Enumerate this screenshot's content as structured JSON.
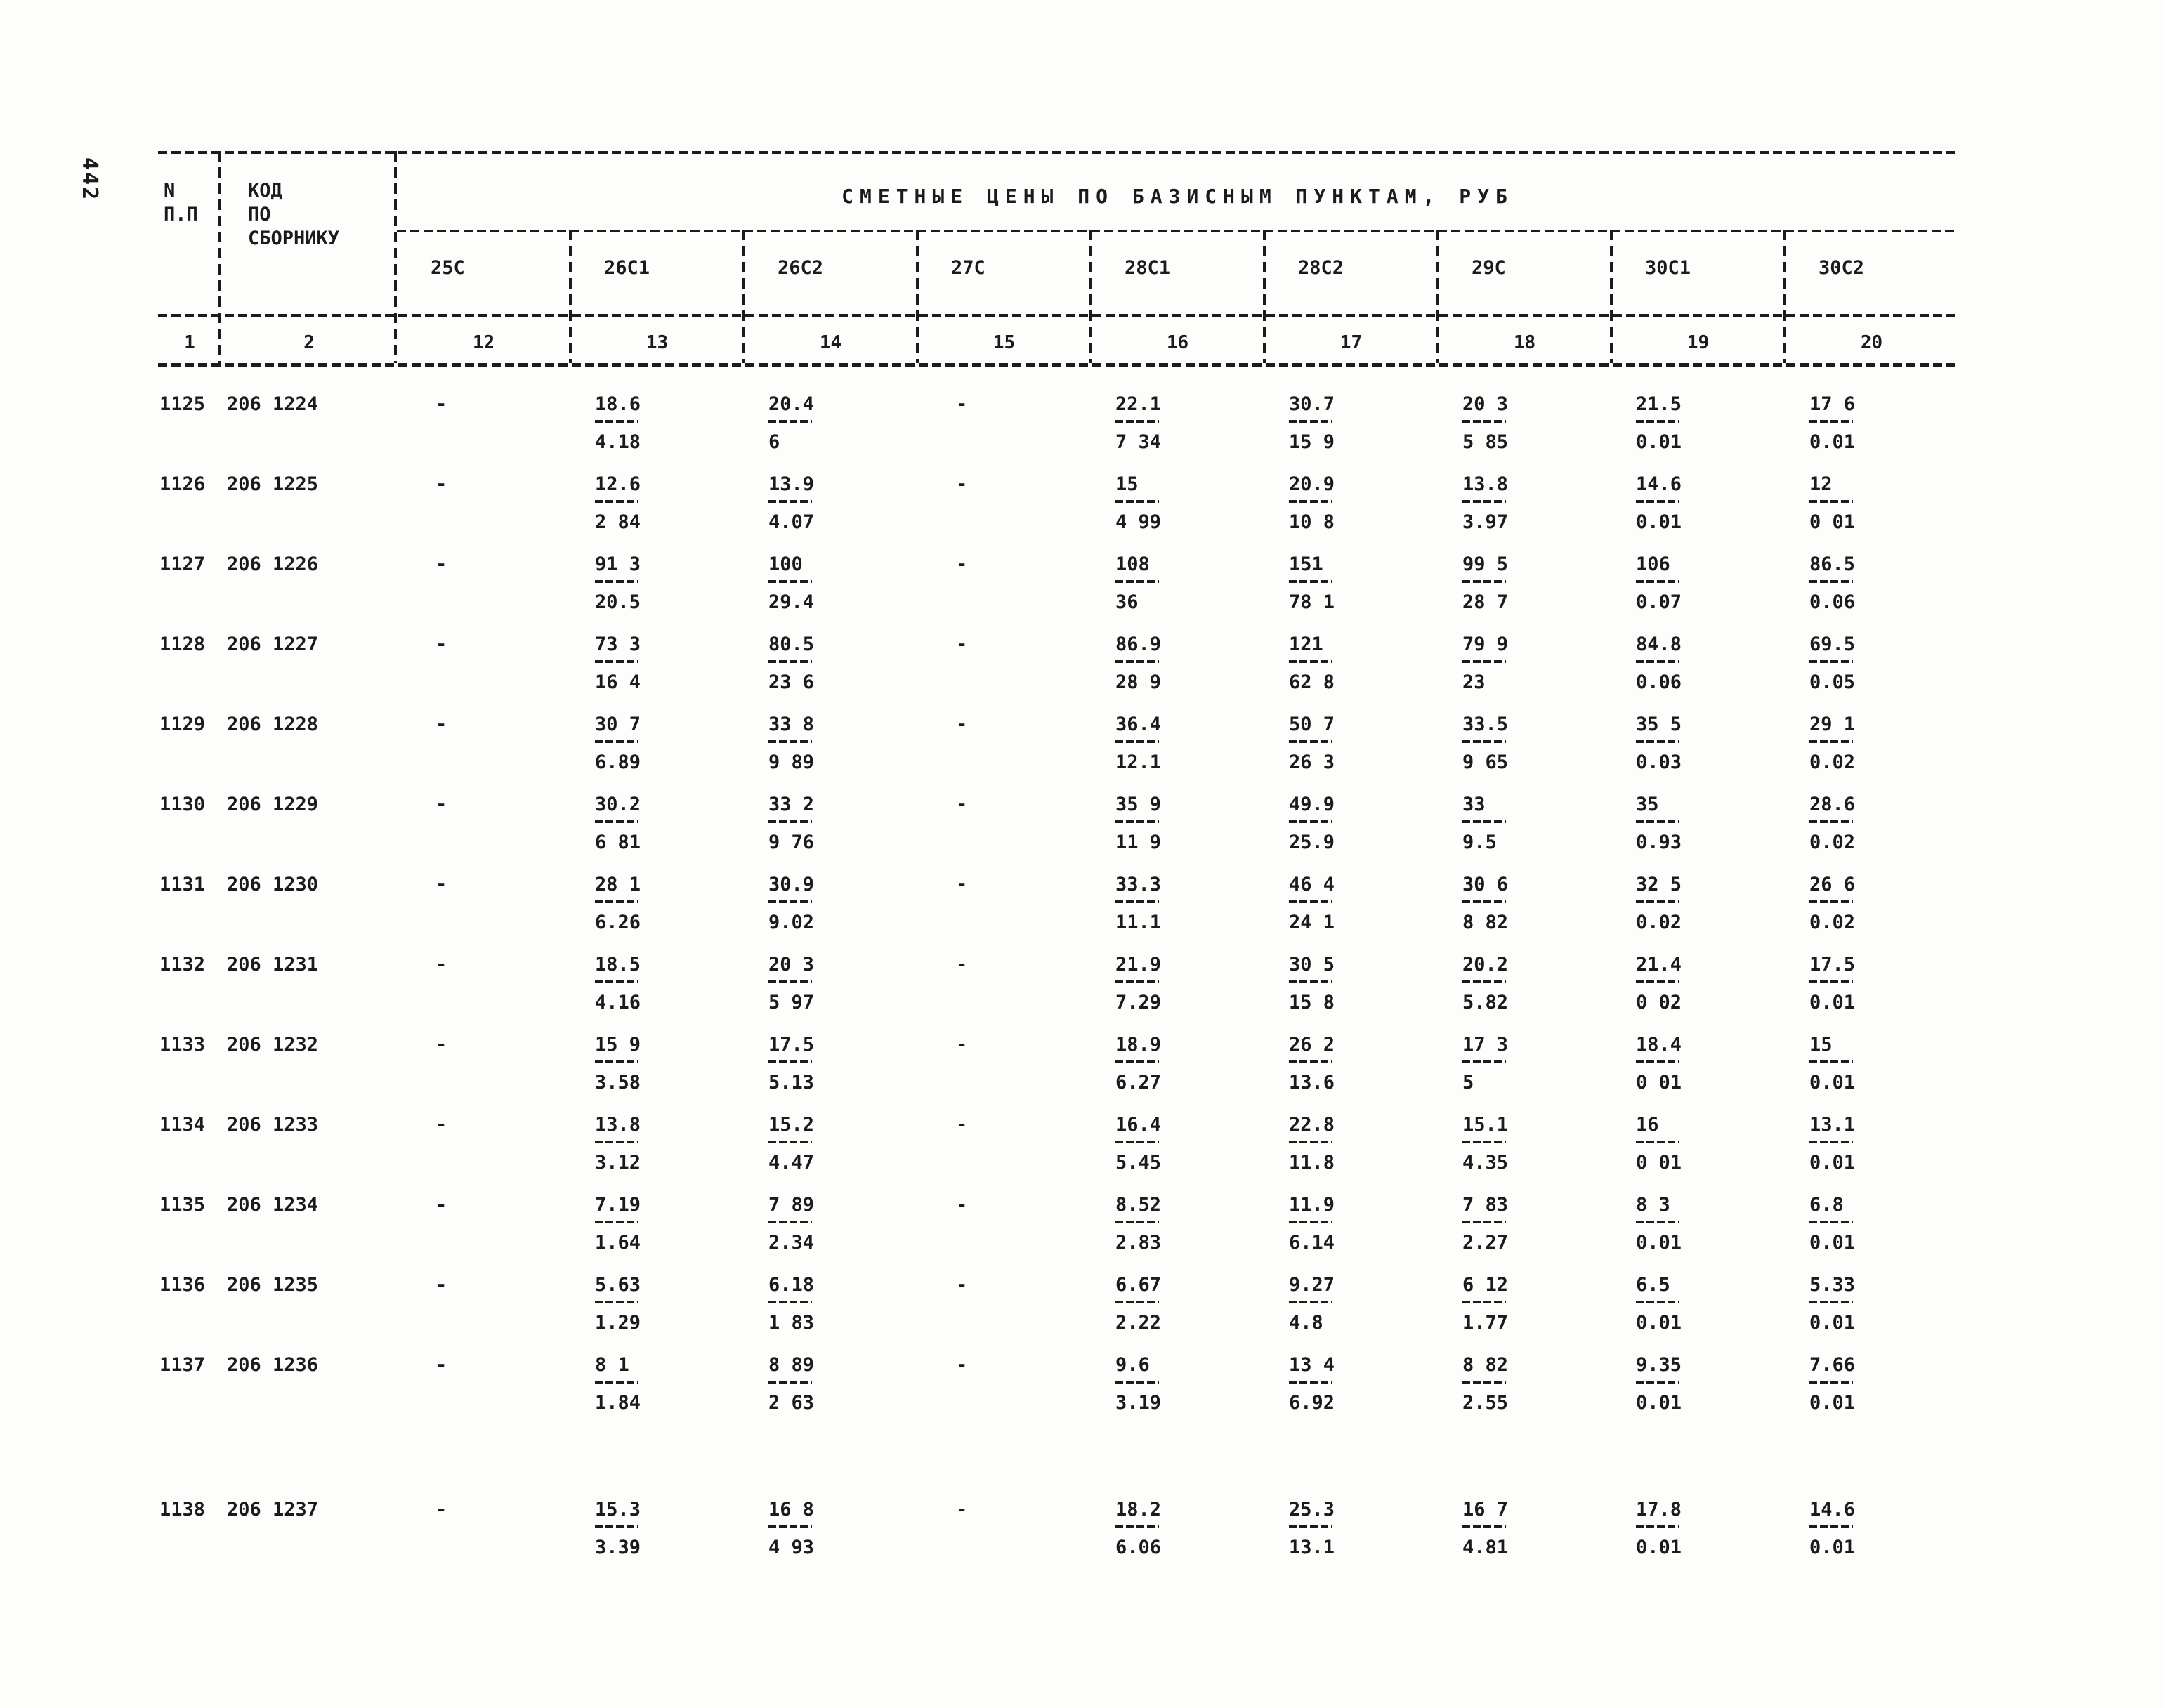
{
  "page": {
    "number": "442"
  },
  "table": {
    "header": {
      "row_col": [
        "N",
        "П.П"
      ],
      "code_col": [
        "КОД",
        "ПО",
        "СБОРНИКУ"
      ],
      "group_title": "СМЕТНЫЕ ЦЕНЫ ПО БАЗИСНЫМ ПУНКТАМ, РУБ",
      "price_columns": [
        "25С",
        "26С1",
        "26С2",
        "27С",
        "28С1",
        "28С2",
        "29С",
        "30С1",
        "30С2"
      ],
      "column_numbers": [
        "1",
        "2",
        "12",
        "13",
        "14",
        "15",
        "16",
        "17",
        "18",
        "19",
        "20"
      ]
    },
    "rows": [
      {
        "n": "1125",
        "code": "206 1224",
        "cells": [
          "-",
          [
            "18.6",
            "4.18"
          ],
          [
            "20.4",
            "6"
          ],
          "-",
          [
            "22.1",
            "7 34"
          ],
          [
            "30.7",
            "15 9"
          ],
          [
            "20 3",
            "5 85"
          ],
          [
            "21.5",
            "0.01"
          ],
          [
            "17 6",
            "0.01"
          ]
        ]
      },
      {
        "n": "1126",
        "code": "206 1225",
        "cells": [
          "-",
          [
            "12.6",
            "2 84"
          ],
          [
            "13.9",
            "4.07"
          ],
          "-",
          [
            "15",
            "4 99"
          ],
          [
            "20.9",
            "10 8"
          ],
          [
            "13.8",
            "3.97"
          ],
          [
            "14.6",
            "0.01"
          ],
          [
            "12",
            "0 01"
          ]
        ]
      },
      {
        "n": "1127",
        "code": "206 1226",
        "cells": [
          "-",
          [
            "91 3",
            "20.5"
          ],
          [
            "100",
            "29.4"
          ],
          "-",
          [
            "108",
            "36"
          ],
          [
            "151",
            "78 1"
          ],
          [
            "99 5",
            "28 7"
          ],
          [
            "106",
            "0.07"
          ],
          [
            "86.5",
            "0.06"
          ]
        ]
      },
      {
        "n": "1128",
        "code": "206 1227",
        "cells": [
          "-",
          [
            "73 3",
            "16 4"
          ],
          [
            "80.5",
            "23 6"
          ],
          "-",
          [
            "86.9",
            "28 9"
          ],
          [
            "121",
            "62 8"
          ],
          [
            "79 9",
            "23"
          ],
          [
            "84.8",
            "0.06"
          ],
          [
            "69.5",
            "0.05"
          ]
        ]
      },
      {
        "n": "1129",
        "code": "206 1228",
        "cells": [
          "-",
          [
            "30 7",
            "6.89"
          ],
          [
            "33 8",
            "9 89"
          ],
          "-",
          [
            "36.4",
            "12.1"
          ],
          [
            "50 7",
            "26 3"
          ],
          [
            "33.5",
            "9 65"
          ],
          [
            "35 5",
            "0.03"
          ],
          [
            "29 1",
            "0.02"
          ]
        ]
      },
      {
        "n": "1130",
        "code": "206 1229",
        "cells": [
          "-",
          [
            "30.2",
            "6 81"
          ],
          [
            "33 2",
            "9 76"
          ],
          "-",
          [
            "35 9",
            "11 9"
          ],
          [
            "49.9",
            "25.9"
          ],
          [
            "33",
            "9.5"
          ],
          [
            "35",
            "0.93"
          ],
          [
            "28.6",
            "0.02"
          ]
        ]
      },
      {
        "n": "1131",
        "code": "206 1230",
        "cells": [
          "-",
          [
            "28 1",
            "6.26"
          ],
          [
            "30.9",
            "9.02"
          ],
          "-",
          [
            "33.3",
            "11.1"
          ],
          [
            "46 4",
            "24 1"
          ],
          [
            "30 6",
            "8 82"
          ],
          [
            "32 5",
            "0.02"
          ],
          [
            "26 6",
            "0.02"
          ]
        ]
      },
      {
        "n": "1132",
        "code": "206 1231",
        "cells": [
          "-",
          [
            "18.5",
            "4.16"
          ],
          [
            "20 3",
            "5 97"
          ],
          "-",
          [
            "21.9",
            "7.29"
          ],
          [
            "30 5",
            "15 8"
          ],
          [
            "20.2",
            "5.82"
          ],
          [
            "21.4",
            "0 02"
          ],
          [
            "17.5",
            "0.01"
          ]
        ]
      },
      {
        "n": "1133",
        "code": "206 1232",
        "cells": [
          "-",
          [
            "15 9",
            "3.58"
          ],
          [
            "17.5",
            "5.13"
          ],
          "-",
          [
            "18.9",
            "6.27"
          ],
          [
            "26 2",
            "13.6"
          ],
          [
            "17 3",
            "5"
          ],
          [
            "18.4",
            "0 01"
          ],
          [
            "15",
            "0.01"
          ]
        ]
      },
      {
        "n": "1134",
        "code": "206 1233",
        "cells": [
          "-",
          [
            "13.8",
            "3.12"
          ],
          [
            "15.2",
            "4.47"
          ],
          "-",
          [
            "16.4",
            "5.45"
          ],
          [
            "22.8",
            "11.8"
          ],
          [
            "15.1",
            "4.35"
          ],
          [
            "16",
            "0 01"
          ],
          [
            "13.1",
            "0.01"
          ]
        ]
      },
      {
        "n": "1135",
        "code": "206 1234",
        "cells": [
          "-",
          [
            "7.19",
            "1.64"
          ],
          [
            "7 89",
            "2.34"
          ],
          "-",
          [
            "8.52",
            "2.83"
          ],
          [
            "11.9",
            "6.14"
          ],
          [
            "7 83",
            "2.27"
          ],
          [
            "8 3",
            "0.01"
          ],
          [
            "6.8",
            "0.01"
          ]
        ]
      },
      {
        "n": "1136",
        "code": "206 1235",
        "cells": [
          "-",
          [
            "5.63",
            "1.29"
          ],
          [
            "6.18",
            "1 83"
          ],
          "-",
          [
            "6.67",
            "2.22"
          ],
          [
            "9.27",
            "4.8"
          ],
          [
            "6 12",
            "1.77"
          ],
          [
            "6.5",
            "0.01"
          ],
          [
            "5.33",
            "0.01"
          ]
        ]
      },
      {
        "n": "1137",
        "code": "206 1236",
        "cells": [
          "-",
          [
            "8 1",
            "1.84"
          ],
          [
            "8 89",
            "2 63"
          ],
          "-",
          [
            "9.6",
            "3.19"
          ],
          [
            "13 4",
            "6.92"
          ],
          [
            "8 82",
            "2.55"
          ],
          [
            "9.35",
            "0.01"
          ],
          [
            "7.66",
            "0.01"
          ]
        ]
      },
      {
        "n": "1138",
        "code": "206 1237",
        "gap": true,
        "cells": [
          "-",
          [
            "15.3",
            "3.39"
          ],
          [
            "16 8",
            "4 93"
          ],
          "-",
          [
            "18.2",
            "6.06"
          ],
          [
            "25.3",
            "13.1"
          ],
          [
            "16 7",
            "4.81"
          ],
          [
            "17.8",
            "0.01"
          ],
          [
            "14.6",
            "0.01"
          ]
        ]
      }
    ]
  }
}
